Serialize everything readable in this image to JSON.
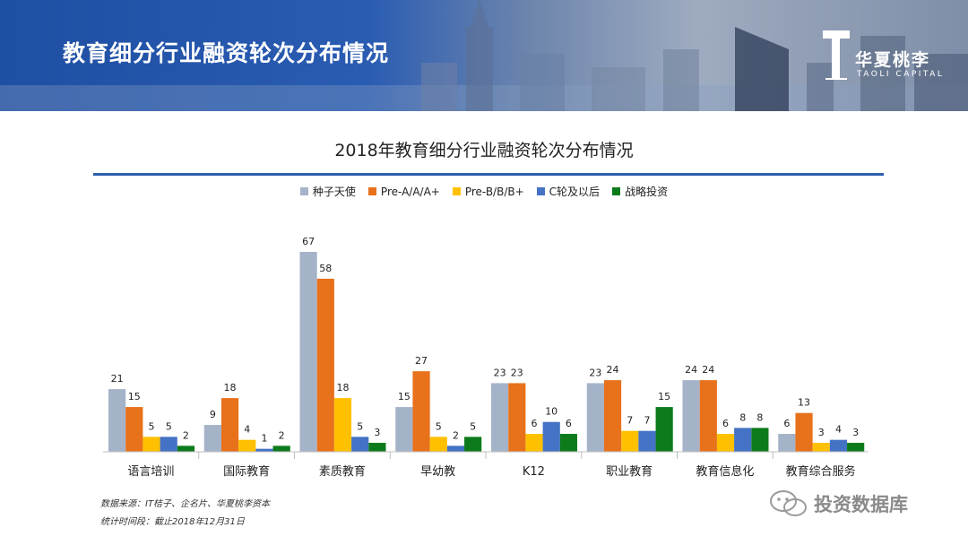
{
  "header": {
    "title": "教育细分行业融资轮次分布情况",
    "logo_name": "华夏桃李",
    "logo_en": "TAOLI CAPITAL"
  },
  "chart_data": {
    "type": "bar",
    "title": "2018年教育细分行业融资轮次分布情况",
    "categories": [
      "语言培训",
      "国际教育",
      "素质教育",
      "早幼教",
      "K12",
      "职业教育",
      "教育信息化",
      "教育综合服务"
    ],
    "series": [
      {
        "name": "种子天使",
        "color": "#a5b3c9",
        "values": [
          21,
          9,
          67,
          15,
          23,
          23,
          24,
          6
        ]
      },
      {
        "name": "Pre-A/A/A+",
        "color": "#e8711b",
        "values": [
          15,
          18,
          58,
          27,
          23,
          24,
          24,
          13
        ]
      },
      {
        "name": "Pre-B/B/B+",
        "color": "#ffc000",
        "values": [
          5,
          4,
          18,
          5,
          6,
          7,
          6,
          3
        ]
      },
      {
        "name": "C轮及以后",
        "color": "#4472c4",
        "values": [
          5,
          1,
          5,
          2,
          10,
          7,
          8,
          4
        ]
      },
      {
        "name": "战略投资",
        "color": "#0d7a1c",
        "values": [
          2,
          2,
          3,
          5,
          6,
          15,
          8,
          3
        ]
      }
    ],
    "ylim": [
      0,
      70
    ],
    "legend_position": "top",
    "grid": false
  },
  "footnotes": {
    "source": "数据来源：IT桔子、企名片、华夏桃李资本",
    "period": "统计时间段：截止2018年12月31日"
  },
  "watermark": {
    "text": "投资数据库"
  }
}
